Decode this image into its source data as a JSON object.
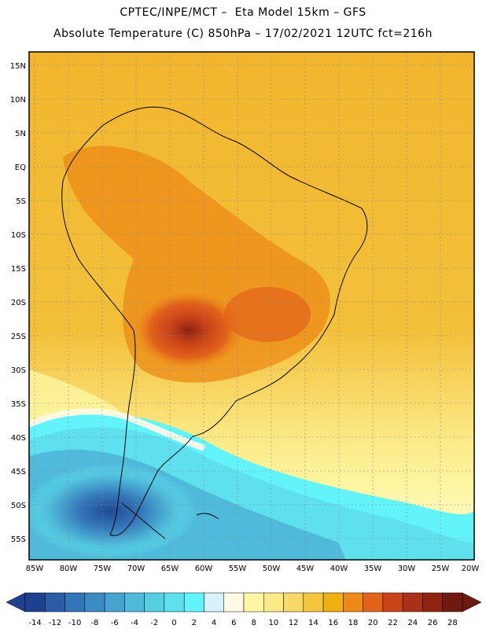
{
  "header": {
    "line1": "CPTEC/INPE/MCT –  Eta Model 15km – GFS",
    "line2": "Absolute Temperature (C) 850hPa – 17/02/2021 12UTC fct=216h"
  },
  "map": {
    "lat_labels": [
      "15N",
      "10N",
      "5N",
      "EQ",
      "5S",
      "10S",
      "15S",
      "20S",
      "25S",
      "30S",
      "35S",
      "40S",
      "45S",
      "50S",
      "55S"
    ],
    "lon_labels": [
      "85W",
      "80W",
      "75W",
      "70W",
      "65W",
      "60W",
      "55W",
      "50W",
      "45W",
      "40W",
      "35W",
      "30W",
      "25W",
      "20W"
    ]
  },
  "colorbar": {
    "labels": [
      "-14",
      "-12",
      "-10",
      "-8",
      "-6",
      "-4",
      "-2",
      "0",
      "2",
      "4",
      "6",
      "8",
      "10",
      "12",
      "14",
      "16",
      "18",
      "20",
      "22",
      "24",
      "26",
      "28"
    ],
    "colors": [
      "#1f3f8f",
      "#2a5ca8",
      "#3376b8",
      "#3c8cc4",
      "#46a3cf",
      "#4fbad9",
      "#57cfe3",
      "#5fe0ee",
      "#63f4fb",
      "#d6f3fb",
      "#fef9e6",
      "#fdf6a3",
      "#fbe985",
      "#f9d965",
      "#f4c63e",
      "#efb012",
      "#ec8a15",
      "#e2621a",
      "#c94318",
      "#a93116",
      "#8f2412",
      "#6e1a10"
    ]
  }
}
